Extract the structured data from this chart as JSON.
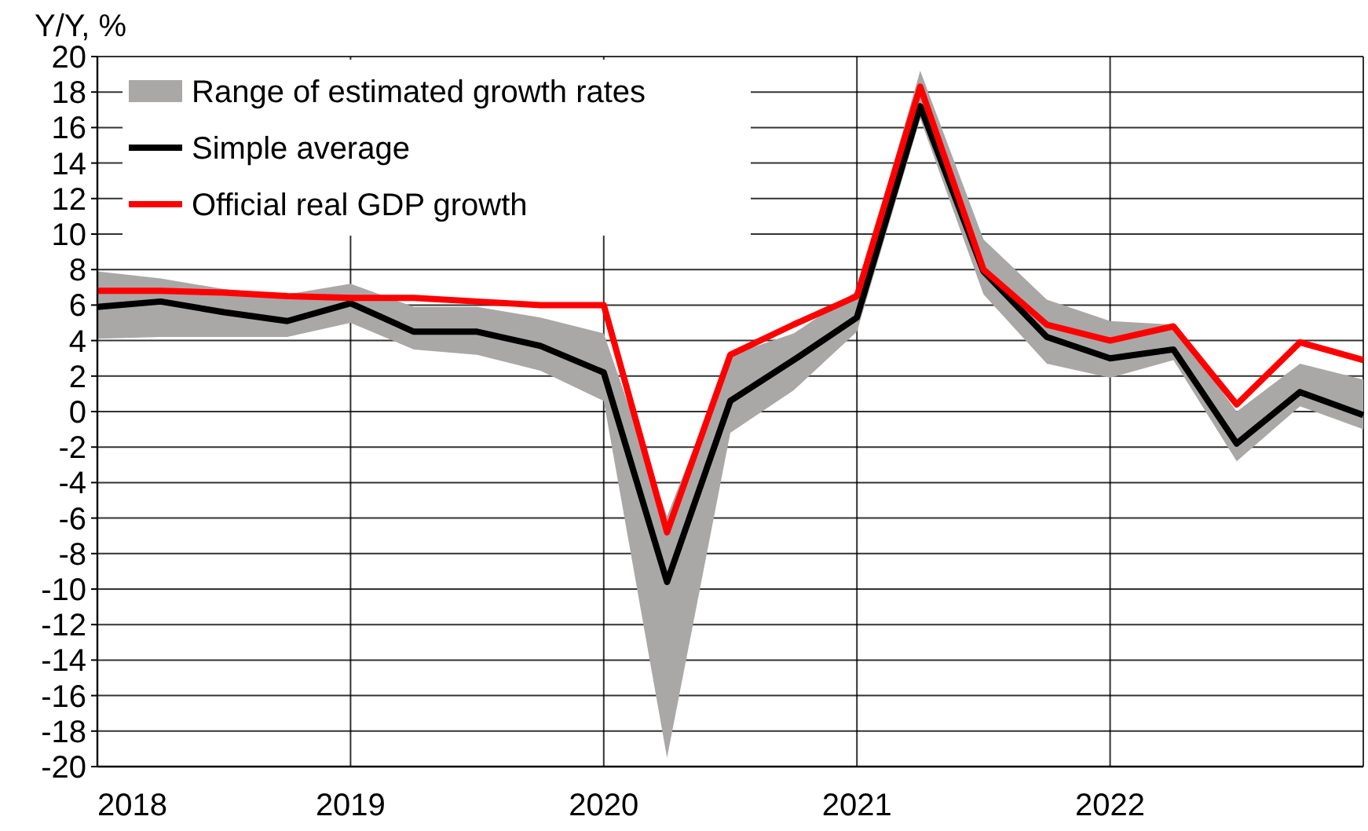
{
  "chart_data": {
    "type": "line",
    "ylabel": "Y/Y, %",
    "x": [
      2018,
      2018.25,
      2018.5,
      2018.75,
      2019,
      2019.25,
      2019.5,
      2019.75,
      2020,
      2020.25,
      2020.5,
      2020.75,
      2021,
      2021.25,
      2021.5,
      2021.75,
      2022,
      2022.25,
      2022.5,
      2022.75,
      2023
    ],
    "xlim": [
      2018,
      2023
    ],
    "xticks": [
      {
        "value": 2018,
        "label": "2018"
      },
      {
        "value": 2019,
        "label": "2019"
      },
      {
        "value": 2020,
        "label": "2020"
      },
      {
        "value": 2021,
        "label": "2021"
      },
      {
        "value": 2022,
        "label": "2022"
      },
      {
        "value": 2023,
        "label": null
      }
    ],
    "ylim": [
      -20,
      20
    ],
    "yticks": [
      -20,
      -18,
      -16,
      -14,
      -12,
      -10,
      -8,
      -6,
      -4,
      -2,
      0,
      2,
      4,
      6,
      8,
      10,
      12,
      14,
      16,
      18,
      20
    ],
    "grid": true,
    "legend": "top left",
    "line_style": "solid",
    "marker": "none",
    "annotations": [
      "Range of estimated growth rates"
    ],
    "series": [
      {
        "name": "Simple average",
        "color": "#000000",
        "values": [
          5.9,
          6.2,
          5.6,
          5.1,
          6.1,
          4.5,
          4.5,
          3.7,
          2.2,
          -9.6,
          0.6,
          2.9,
          5.3,
          17.2,
          7.9,
          4.2,
          3.0,
          3.5,
          -1.8,
          1.1,
          -0.2
        ],
        "lower": [
          4.1,
          4.2,
          4.2,
          4.2,
          5.0,
          3.5,
          3.2,
          2.3,
          0.6,
          -19.5,
          -1.2,
          1.2,
          4.5,
          16.5,
          6.6,
          2.7,
          1.9,
          2.9,
          -2.8,
          0.3,
          -1.0
        ],
        "upper": [
          7.9,
          7.5,
          6.9,
          6.6,
          7.2,
          5.9,
          5.9,
          5.3,
          4.4,
          -5.9,
          3.2,
          4.4,
          6.8,
          19.2,
          9.7,
          6.3,
          5.1,
          4.9,
          0,
          2.7,
          1.8
        ]
      },
      {
        "name": "Official real GDP growth",
        "color": "#ff0000",
        "values": [
          6.8,
          6.8,
          6.7,
          6.5,
          6.4,
          6.4,
          6.2,
          6.0,
          6.0,
          -6.8,
          3.2,
          4.9,
          6.5,
          18.3,
          8.0,
          4.9,
          4.0,
          4.8,
          0.4,
          3.9,
          2.9
        ]
      }
    ]
  }
}
